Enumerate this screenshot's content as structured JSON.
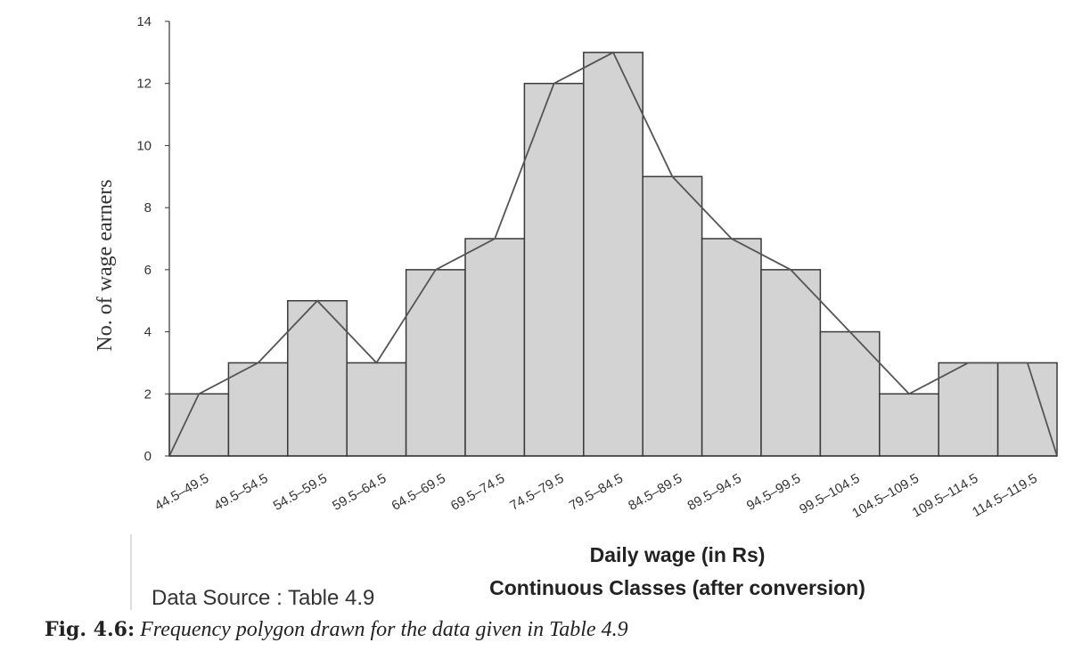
{
  "chart_data": {
    "type": "bar",
    "categories": [
      "44.5–49.5",
      "49.5–54.5",
      "54.5–59.5",
      "59.5–64.5",
      "64.5–69.5",
      "69.5–74.5",
      "74.5–79.5",
      "79.5–84.5",
      "84.5–89.5",
      "89.5–94.5",
      "94.5–99.5",
      "99.5–104.5",
      "104.5–109.5",
      "109.5–114.5",
      "114.5–119.5"
    ],
    "values": [
      2,
      3,
      5,
      3,
      6,
      7,
      12,
      13,
      9,
      7,
      6,
      4,
      2,
      3,
      3
    ],
    "polygon": {
      "x": [
        44.5,
        47,
        52,
        57,
        62,
        67,
        72,
        77,
        82,
        87,
        92,
        97,
        102,
        107,
        112,
        117,
        119.5
      ],
      "y": [
        0,
        2,
        3,
        5,
        3,
        6,
        7,
        12,
        13,
        9,
        7,
        6,
        4,
        2,
        3,
        3,
        0
      ]
    },
    "xlabel": "Daily wage (in Rs)",
    "xlabel_line2": "Continuous Classes (after conversion)",
    "ylabel": "No. of wage earners",
    "ylim": [
      0,
      14
    ],
    "yticks": [
      0,
      2,
      4,
      6,
      8,
      10,
      12,
      14
    ],
    "grid": false,
    "colors": {
      "bar_fill": "#d3d3d3",
      "bar_edge": "#3a3a3a",
      "line": "#555555",
      "axis": "#333333"
    }
  },
  "source_note": "Data Source : Table 4.9",
  "caption": {
    "label": "Fig. 4.6:",
    "text": " Frequency polygon drawn for the data given in Table 4.9"
  }
}
